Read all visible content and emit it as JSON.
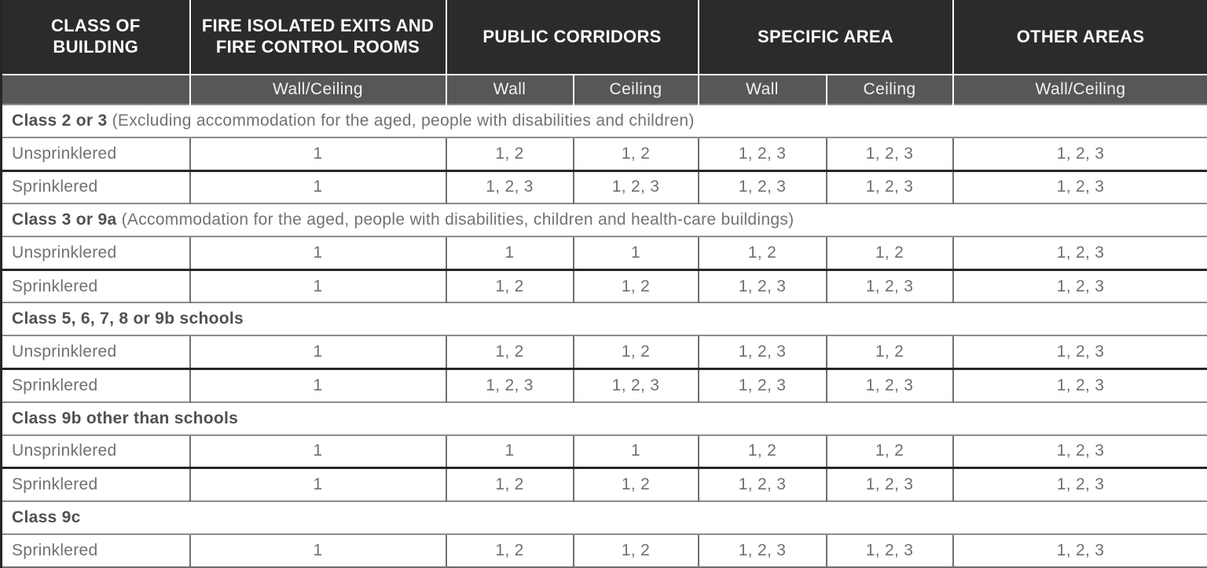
{
  "colors": {
    "header_background": "#2b2b2b",
    "subheader_background": "#57575a",
    "header_text": "#ffffff",
    "body_text": "#6f7072",
    "section_title_text": "#4f5052",
    "thick_divider": "#262626",
    "thin_divider": "#8c8c8e"
  },
  "table": {
    "header_row1": [
      "CLASS OF BUILDING",
      "FIRE ISOLATED EXITS AND FIRE CONTROL ROOMS",
      "PUBLIC CORRIDORS",
      "SPECIFIC AREA",
      "OTHER AREAS"
    ],
    "header_row2": [
      "",
      "Wall/Ceiling",
      "Wall",
      "Ceiling",
      "Wall",
      "Ceiling",
      "Wall/Ceiling"
    ],
    "sections": [
      {
        "title": "Class 2 or 3",
        "subtitle": "(Excluding accommodation for the aged, people with disabilities and children)",
        "rows": [
          {
            "label": "Unsprinklered",
            "values": [
              "1",
              "1, 2",
              "1, 2",
              "1, 2, 3",
              "1, 2, 3",
              "1, 2, 3"
            ]
          },
          {
            "label": "Sprinklered",
            "values": [
              "1",
              "1, 2, 3",
              "1, 2, 3",
              "1, 2, 3",
              "1, 2, 3",
              "1, 2, 3"
            ]
          }
        ]
      },
      {
        "title": "Class 3 or 9a",
        "subtitle": "(Accommodation for the aged, people with disabilities, children and health-care buildings)",
        "rows": [
          {
            "label": "Unsprinklered",
            "values": [
              "1",
              "1",
              "1",
              "1, 2",
              "1, 2",
              "1, 2, 3"
            ]
          },
          {
            "label": "Sprinklered",
            "values": [
              "1",
              "1, 2",
              "1, 2",
              "1, 2, 3",
              "1, 2, 3",
              "1, 2, 3"
            ]
          }
        ]
      },
      {
        "title": "Class 5, 6, 7, 8 or 9b schools",
        "subtitle": "",
        "rows": [
          {
            "label": "Unsprinklered",
            "values": [
              "1",
              "1, 2",
              "1, 2",
              "1, 2, 3",
              "1, 2",
              "1, 2, 3"
            ]
          },
          {
            "label": "Sprinklered",
            "values": [
              "1",
              "1, 2, 3",
              "1, 2, 3",
              "1, 2, 3",
              "1, 2, 3",
              "1, 2, 3"
            ]
          }
        ]
      },
      {
        "title": "Class 9b other than schools",
        "subtitle": "",
        "rows": [
          {
            "label": "Unsprinklered",
            "values": [
              "1",
              "1",
              "1",
              "1, 2",
              "1, 2",
              "1, 2, 3"
            ]
          },
          {
            "label": "Sprinklered",
            "values": [
              "1",
              "1, 2",
              "1, 2",
              "1, 2, 3",
              "1, 2, 3",
              "1, 2, 3"
            ]
          }
        ]
      },
      {
        "title": "Class 9c",
        "subtitle": "",
        "rows": [
          {
            "label": "Sprinklered",
            "values": [
              "1",
              "1, 2",
              "1, 2",
              "1, 2, 3",
              "1, 2, 3",
              "1, 2, 3"
            ]
          }
        ]
      }
    ]
  }
}
